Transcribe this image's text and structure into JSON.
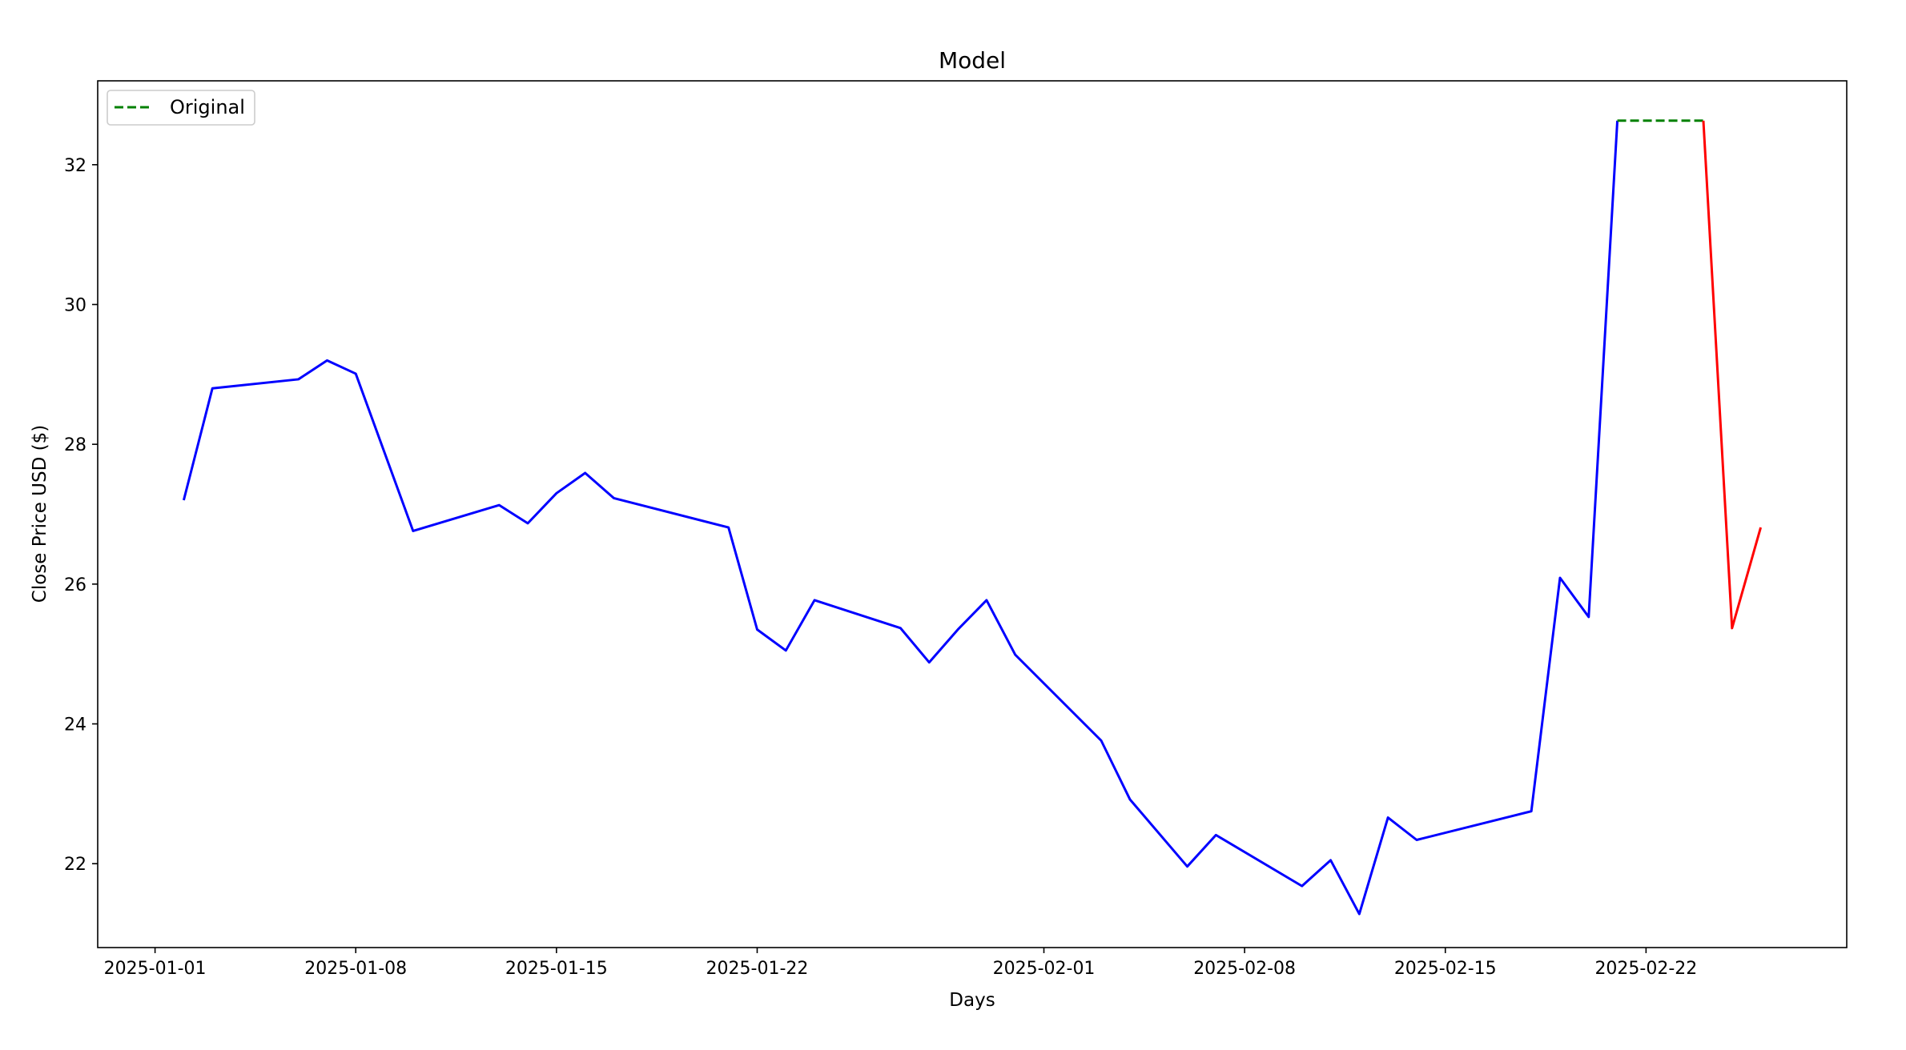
{
  "chart_data": {
    "type": "line",
    "title": "Model",
    "xlabel": "Days",
    "ylabel": "Close Price USD ($)",
    "xlim": [
      "2024-12-30",
      "2025-03-01"
    ],
    "ylim": [
      20.8,
      33.2
    ],
    "x_ticks": [
      "2025-01-01",
      "2025-01-08",
      "2025-01-15",
      "2025-01-22",
      "2025-02-01",
      "2025-02-08",
      "2025-02-15",
      "2025-02-22"
    ],
    "y_ticks": [
      22,
      24,
      26,
      28,
      30,
      32
    ],
    "grid": false,
    "legend_position": "top-left",
    "series": [
      {
        "color": "#0000ff",
        "style": "solid",
        "x": [
          "2025-01-02",
          "2025-01-03",
          "2025-01-06",
          "2025-01-07",
          "2025-01-08",
          "2025-01-10",
          "2025-01-13",
          "2025-01-14",
          "2025-01-15",
          "2025-01-16",
          "2025-01-17",
          "2025-01-21",
          "2025-01-22",
          "2025-01-23",
          "2025-01-24",
          "2025-01-27",
          "2025-01-28",
          "2025-01-29",
          "2025-01-30",
          "2025-01-31",
          "2025-02-03",
          "2025-02-04",
          "2025-02-06",
          "2025-02-07",
          "2025-02-10",
          "2025-02-11",
          "2025-02-12",
          "2025-02-13",
          "2025-02-14",
          "2025-02-18",
          "2025-02-19",
          "2025-02-20",
          "2025-02-21"
        ],
        "values": [
          27.2,
          28.8,
          28.93,
          29.2,
          29.01,
          26.76,
          27.13,
          26.87,
          27.3,
          27.59,
          27.23,
          26.81,
          25.35,
          25.05,
          25.77,
          25.37,
          24.88,
          25.35,
          25.77,
          24.99,
          23.76,
          22.92,
          21.96,
          22.41,
          21.68,
          22.05,
          21.28,
          22.66,
          22.34,
          22.75,
          26.09,
          25.53,
          32.63
        ]
      },
      {
        "name": "Original",
        "color": "#008000",
        "style": "dashed",
        "x": [
          "2025-02-21",
          "2025-02-24"
        ],
        "values": [
          32.63,
          32.63
        ]
      },
      {
        "color": "#ff0000",
        "style": "solid",
        "x": [
          "2025-02-24",
          "2025-02-25",
          "2025-02-26"
        ],
        "values": [
          32.63,
          25.37,
          26.81
        ]
      }
    ]
  }
}
